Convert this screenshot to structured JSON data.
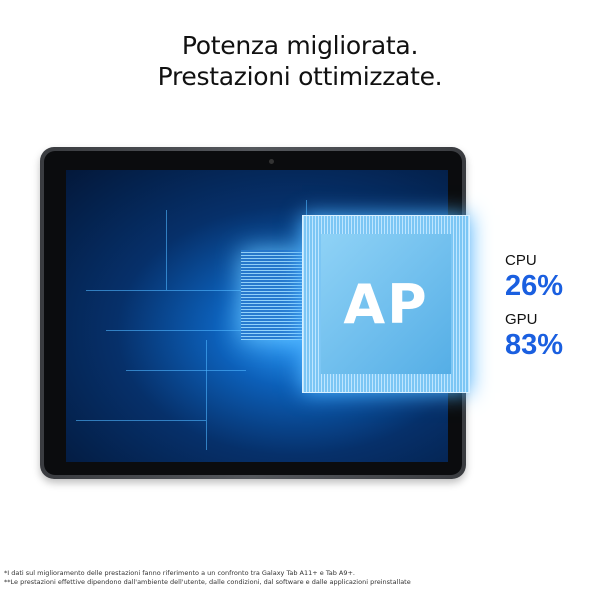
{
  "headline": {
    "line1": "Potenza migliorata.",
    "line2": "Prestazioni ottimizzate."
  },
  "chip": {
    "label": "AP"
  },
  "stats": [
    {
      "label": "CPU",
      "value": "26%"
    },
    {
      "label": "GPU",
      "value": "83%"
    }
  ],
  "accent_color": "#1a5fe0",
  "footnotes": [
    "*I dati sul miglioramento delle prestazioni fanno riferimento a un confronto tra Galaxy Tab A11+ e Tab A9+.",
    "**Le prestazioni effettive dipendono dall'ambiente dell'utente, dalle condizioni, dal software e dalle applicazioni preinstallate"
  ]
}
